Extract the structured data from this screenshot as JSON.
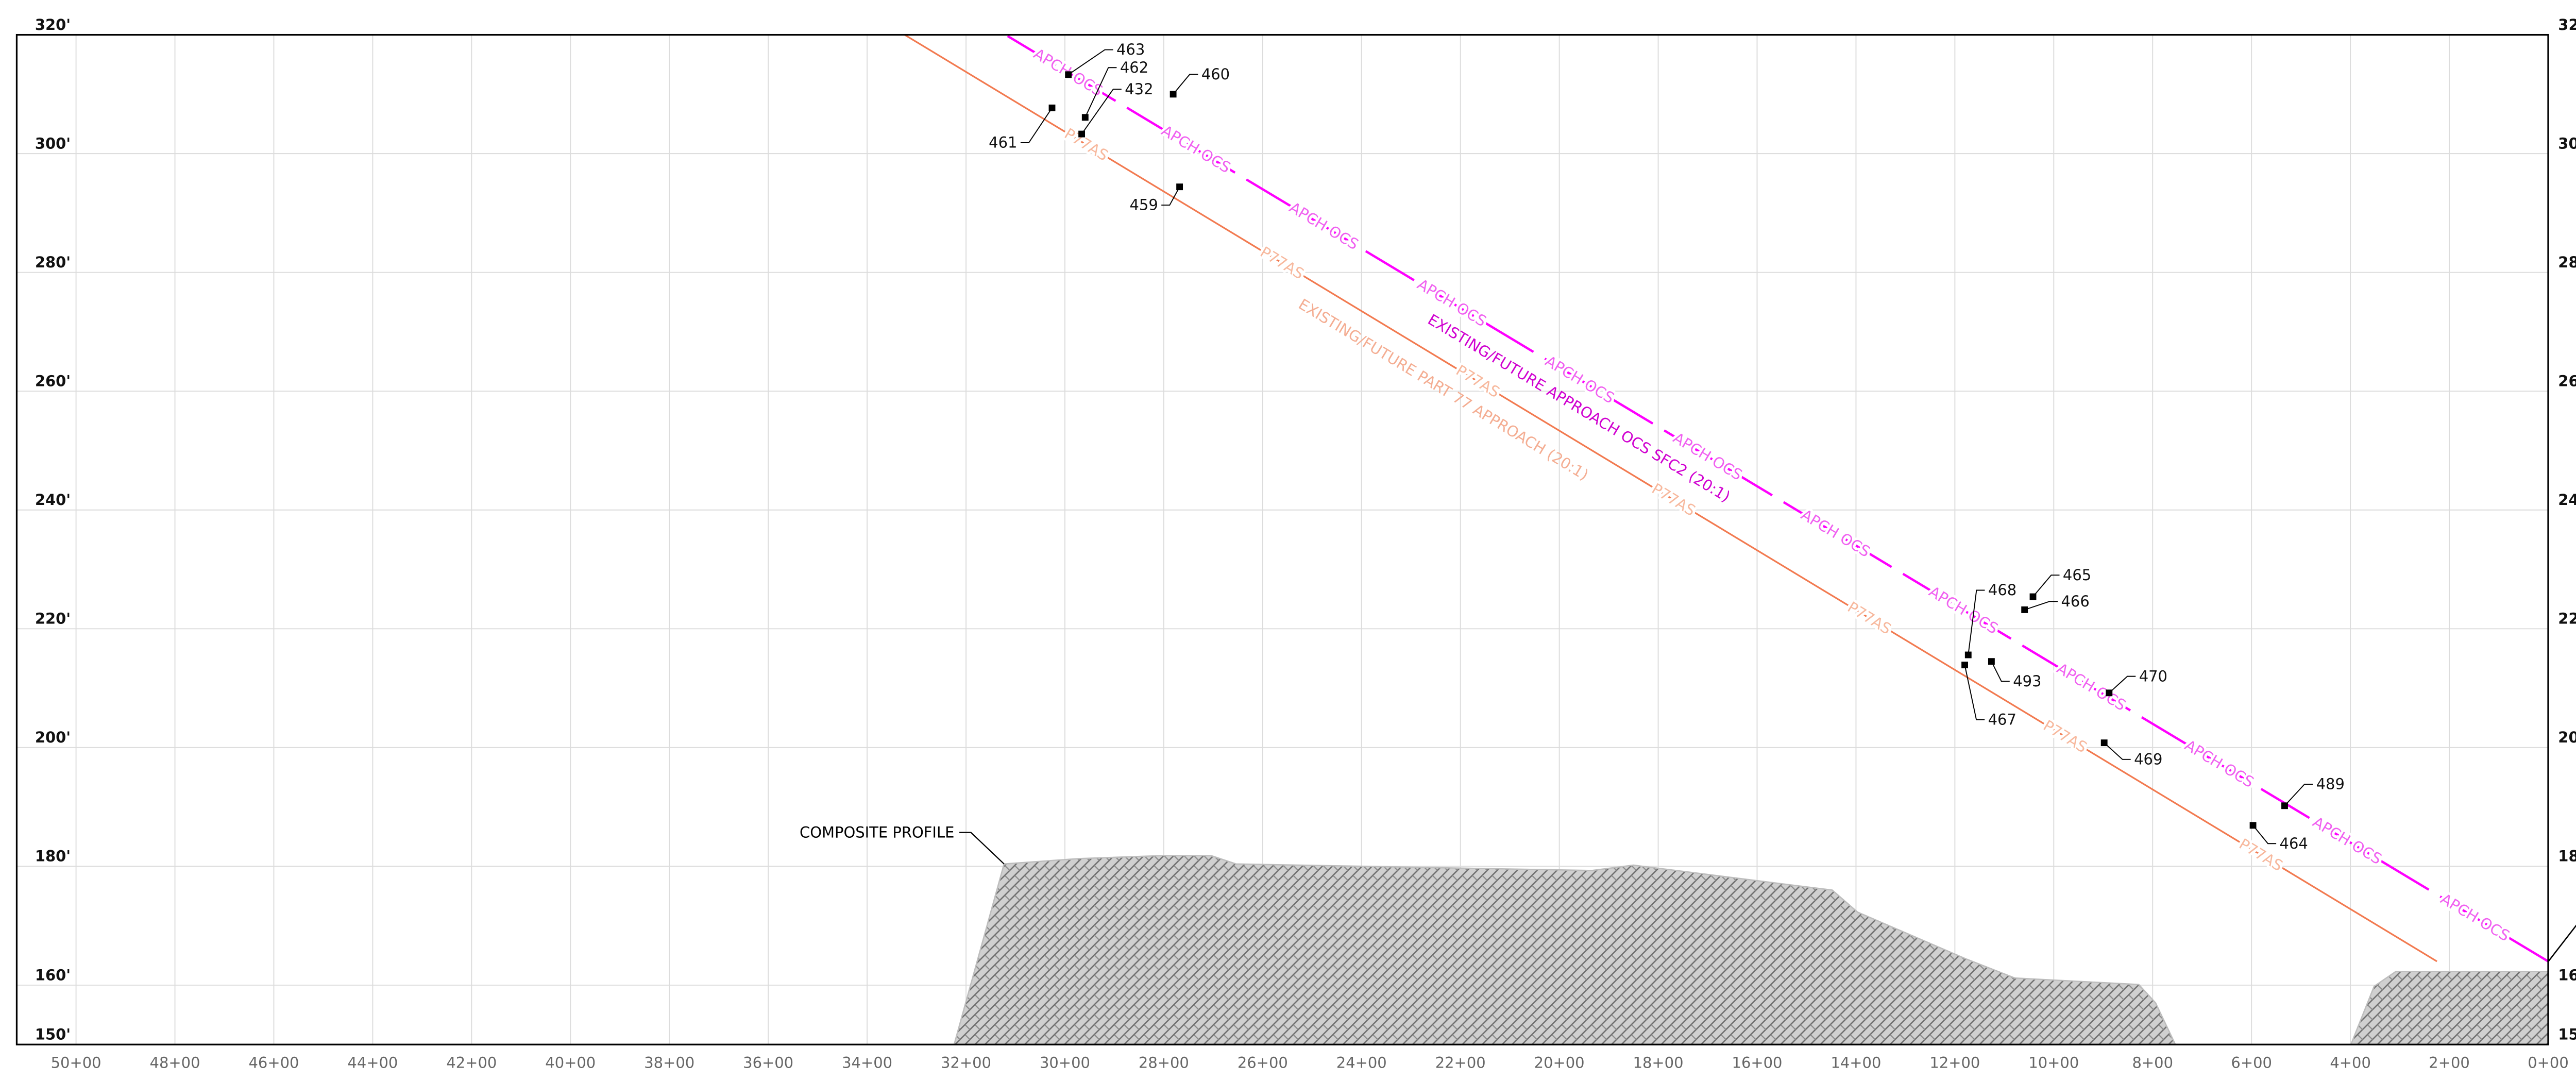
{
  "chart_data": {
    "type": "profile",
    "xlim": [
      5120,
      0
    ],
    "ylim": [
      150,
      320
    ],
    "xticks": [
      {
        "value": 5000,
        "label": "50+00"
      },
      {
        "value": 4800,
        "label": "48+00"
      },
      {
        "value": 4600,
        "label": "46+00"
      },
      {
        "value": 4400,
        "label": "44+00"
      },
      {
        "value": 4200,
        "label": "42+00"
      },
      {
        "value": 4000,
        "label": "40+00"
      },
      {
        "value": 3800,
        "label": "38+00"
      },
      {
        "value": 3600,
        "label": "36+00"
      },
      {
        "value": 3400,
        "label": "34+00"
      },
      {
        "value": 3200,
        "label": "32+00"
      },
      {
        "value": 3000,
        "label": "30+00"
      },
      {
        "value": 2800,
        "label": "28+00"
      },
      {
        "value": 2600,
        "label": "26+00"
      },
      {
        "value": 2400,
        "label": "24+00"
      },
      {
        "value": 2200,
        "label": "22+00"
      },
      {
        "value": 2000,
        "label": "20+00"
      },
      {
        "value": 1800,
        "label": "18+00"
      },
      {
        "value": 1600,
        "label": "16+00"
      },
      {
        "value": 1400,
        "label": "14+00"
      },
      {
        "value": 1200,
        "label": "12+00"
      },
      {
        "value": 1000,
        "label": "10+00"
      },
      {
        "value": 800,
        "label": "8+00"
      },
      {
        "value": 600,
        "label": "6+00"
      },
      {
        "value": 400,
        "label": "4+00"
      },
      {
        "value": 200,
        "label": "2+00"
      },
      {
        "value": 0,
        "label": "0+00"
      }
    ],
    "yticks": [
      {
        "value": 320,
        "label": "320'"
      },
      {
        "value": 300,
        "label": "300'"
      },
      {
        "value": 280,
        "label": "280'"
      },
      {
        "value": 260,
        "label": "260'"
      },
      {
        "value": 240,
        "label": "240'"
      },
      {
        "value": 220,
        "label": "220'"
      },
      {
        "value": 200,
        "label": "200'"
      },
      {
        "value": 180,
        "label": "180'"
      },
      {
        "value": 160,
        "label": "160'"
      },
      {
        "value": 150,
        "label": "150'"
      }
    ],
    "grid": true,
    "surfaces": [
      {
        "name": "EXISTING/FUTURE APPROACH OCS SFC2 (20:1)",
        "tag": "APCH OCS",
        "color": "#ff00ff",
        "tag_color": "#f060f0",
        "label_color": "#d000d0",
        "dashed": true,
        "x": [
          0,
          3120
        ],
        "values": [
          164,
          320
        ]
      },
      {
        "name": "EXISTING/FUTURE PART 77 APPROACH (20:1)",
        "tag": "P77AS",
        "color": "#f27a50",
        "tag_color": "#f7b89d",
        "label_color": "#f4ad92",
        "dashed": false,
        "x": [
          225,
          3324
        ],
        "values": [
          164,
          320
        ]
      }
    ],
    "profile": {
      "name": "COMPOSITE PROFILE",
      "color": "#bdbdbd",
      "pieces": [
        {
          "x": [
            3224,
            3123,
            2972,
            2805,
            2704,
            2654,
            1934,
            1850,
            1448,
            1397,
            1180,
            1079,
            828,
            794,
            754
          ],
          "values": [
            150,
            180.4,
            181.3,
            181.8,
            181.8,
            180.4,
            179.3,
            180.2,
            176.0,
            172.3,
            164.5,
            161.2,
            160.1,
            157.0,
            150
          ]
        },
        {
          "x": [
            399,
            352,
            308,
            0,
            0
          ],
          "values": [
            150,
            159.8,
            162.3,
            162.3,
            150
          ]
        }
      ]
    },
    "obstructions": {
      "labels": [
        "463",
        "462",
        "432",
        "461",
        "460",
        "459",
        "468",
        "467",
        "493",
        "465",
        "466",
        "470",
        "469",
        "489",
        "464"
      ],
      "x": [
        2993,
        2959,
        2966,
        3026,
        2781,
        2768,
        1173,
        1180,
        1126,
        1042,
        1059,
        888,
        898,
        533,
        597
      ],
      "values": [
        313.3,
        306.1,
        303.3,
        307.7,
        310.0,
        294.4,
        215.6,
        213.9,
        214.5,
        225.4,
        223.2,
        209.2,
        200.8,
        190.2,
        186.9
      ]
    }
  }
}
